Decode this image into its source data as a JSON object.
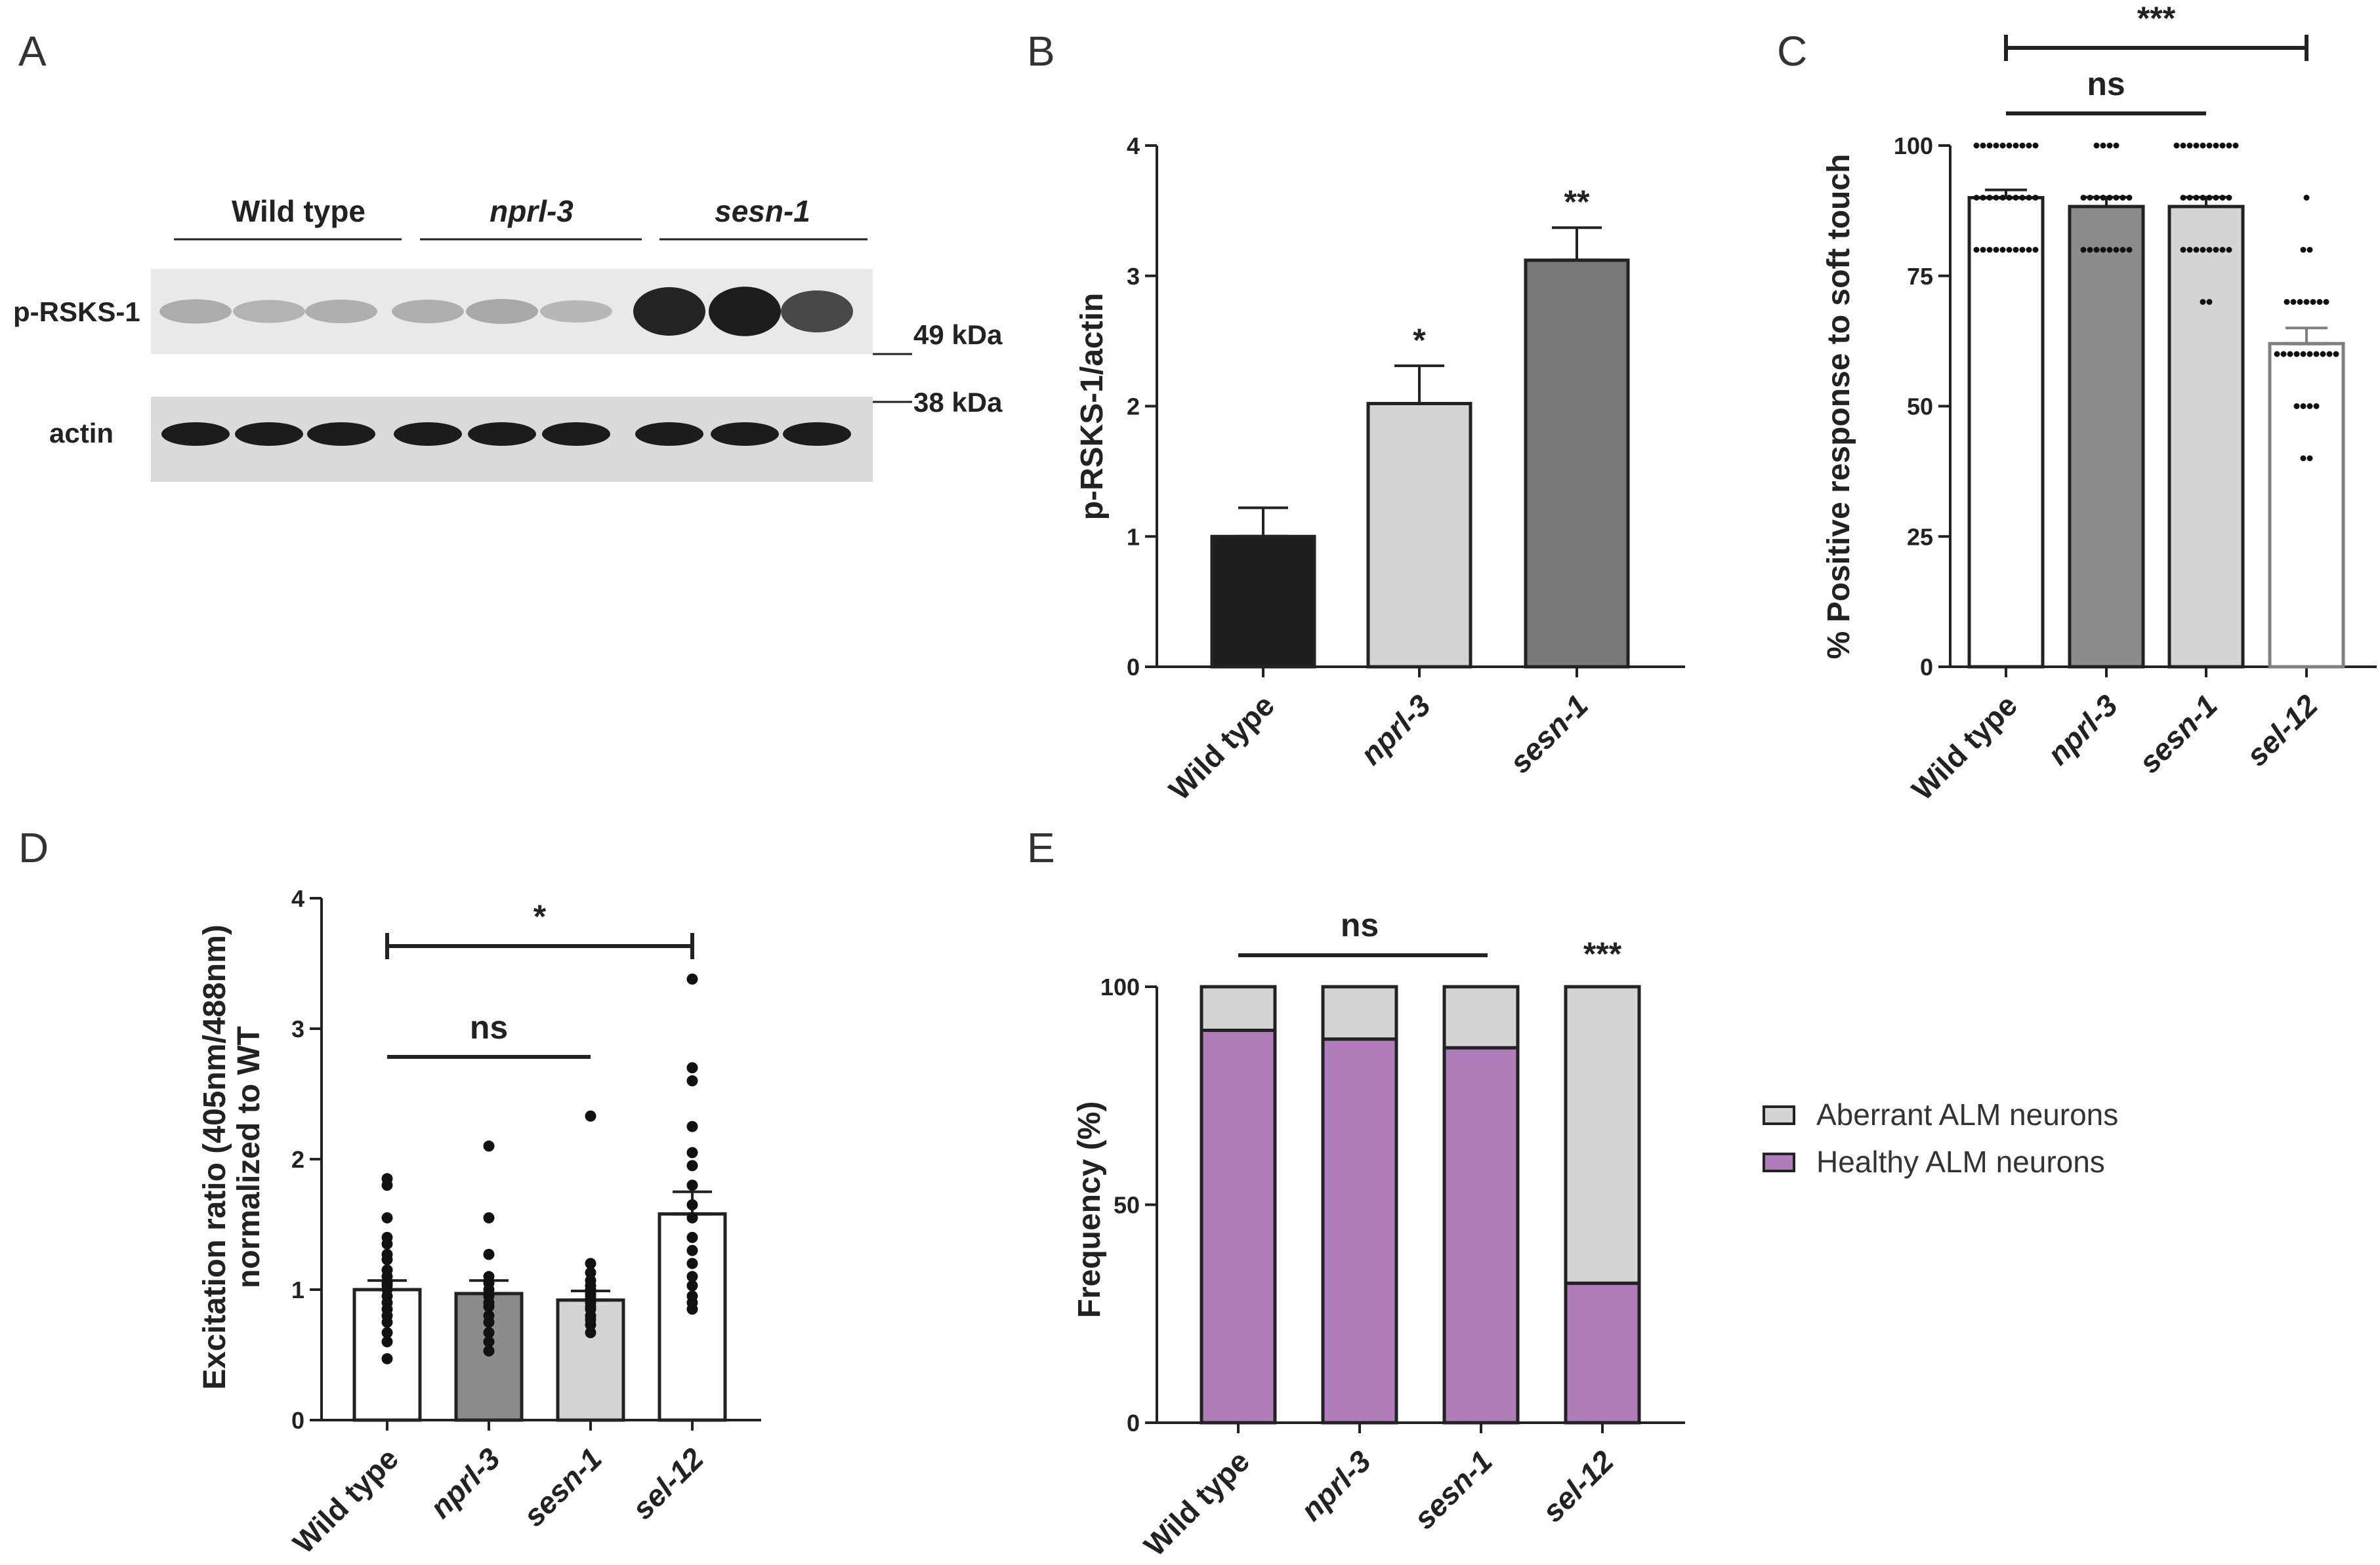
{
  "panel_labels": {
    "a": "A",
    "b": "B",
    "c": "C",
    "d": "D",
    "e": "E"
  },
  "blot": {
    "groups": [
      "Wild type",
      "nprl-3",
      "sesn-1"
    ],
    "rows": [
      "p-RSKS-1",
      "actin"
    ],
    "markers": [
      "49 kDa",
      "38 kDa"
    ],
    "prsks_band_intensity": [
      0.18,
      0.14,
      0.16,
      0.16,
      0.2,
      0.12,
      0.92,
      0.95,
      0.72
    ]
  },
  "colors": {
    "black": "#1e1e1e",
    "light_gray": "#d4d4d4",
    "mid_gray": "#8c8c8c",
    "dark_gray": "#7a7a7a",
    "purple": "#b07cba",
    "axis": "#222222"
  },
  "chart_data": [
    {
      "id": "b",
      "type": "bar",
      "ylabel": "p-RSKS-1/actin",
      "categories": [
        "Wild type",
        "nprl-3",
        "sesn-1"
      ],
      "values": [
        1.0,
        2.02,
        3.12
      ],
      "errors": [
        0.22,
        0.29,
        0.25
      ],
      "significance": [
        "",
        "*",
        "**"
      ],
      "ylim": [
        0,
        4
      ],
      "yticks": [
        "0",
        "1",
        "2",
        "3",
        "4"
      ]
    },
    {
      "id": "c",
      "type": "bar",
      "ylabel": "% Positive response to soft touch",
      "categories": [
        "Wild type",
        "nprl-3",
        "sesn-1",
        "sel-12"
      ],
      "values": [
        90,
        88.3,
        88.3,
        62
      ],
      "errors": [
        1.5,
        1.8,
        1.8,
        3.0
      ],
      "ylim": [
        0,
        100
      ],
      "yticks": [
        "0",
        "25",
        "50",
        "75",
        "100"
      ],
      "points": [
        [
          100,
          100,
          100,
          100,
          100,
          100,
          100,
          100,
          100,
          100,
          90,
          90,
          90,
          90,
          90,
          90,
          90,
          90,
          90,
          90,
          80,
          80,
          80,
          80,
          80,
          80,
          80,
          80,
          80,
          80
        ],
        [
          100,
          100,
          100,
          100,
          90,
          90,
          90,
          90,
          90,
          90,
          90,
          90,
          80,
          80,
          80,
          80,
          80,
          80,
          80,
          80
        ],
        [
          100,
          100,
          100,
          100,
          100,
          100,
          100,
          100,
          100,
          100,
          90,
          90,
          90,
          90,
          90,
          90,
          90,
          90,
          80,
          80,
          80,
          80,
          80,
          80,
          80,
          80,
          70,
          70
        ],
        [
          90,
          80,
          80,
          70,
          70,
          70,
          70,
          70,
          70,
          70,
          60,
          60,
          60,
          60,
          60,
          60,
          60,
          60,
          60,
          60,
          50,
          50,
          50,
          50,
          40,
          40
        ]
      ],
      "comparisons": [
        {
          "label": "ns",
          "from": 0,
          "to": 2,
          "caps": false
        },
        {
          "label": "***",
          "from": 0,
          "to": 3,
          "caps": true
        }
      ]
    },
    {
      "id": "d",
      "type": "bar",
      "ylabel": [
        "Excitation ratio (405nm/488nm)",
        "normalized to WT"
      ],
      "categories": [
        "Wild type",
        "nprl-3",
        "sesn-1",
        "sel-12"
      ],
      "values": [
        1.0,
        0.97,
        0.92,
        1.58
      ],
      "errors": [
        0.07,
        0.1,
        0.07,
        0.17
      ],
      "ylim": [
        0,
        4
      ],
      "yticks": [
        "0",
        "1",
        "2",
        "3",
        "4"
      ],
      "points": [
        [
          1.8,
          1.75,
          1.5,
          1.35,
          1.3,
          1.22,
          1.18,
          1.1,
          1.05,
          1.0,
          0.98,
          0.95,
          0.9,
          0.85,
          0.8,
          0.75,
          0.7,
          0.62,
          0.55,
          0.42
        ],
        [
          2.05,
          1.5,
          1.22,
          1.05,
          1.0,
          0.95,
          0.9,
          0.85,
          0.82,
          0.75,
          0.7,
          0.62,
          0.55,
          0.48
        ],
        [
          2.28,
          1.15,
          1.08,
          1.02,
          0.98,
          0.95,
          0.92,
          0.9,
          0.88,
          0.85,
          0.82,
          0.8,
          0.75,
          0.72,
          0.68,
          0.62
        ],
        [
          3.33,
          2.65,
          2.55,
          2.2,
          2.0,
          1.9,
          1.75,
          1.6,
          1.5,
          1.35,
          1.25,
          1.15,
          1.05,
          0.98,
          0.9,
          0.85,
          0.8
        ]
      ],
      "comparisons": [
        {
          "label": "ns",
          "from": 0,
          "to": 2,
          "caps": false
        },
        {
          "label": "*",
          "from": 0,
          "to": 3,
          "caps": true
        }
      ]
    },
    {
      "id": "e",
      "type": "stacked-bar",
      "ylabel": "Frequency (%)",
      "categories": [
        "Wild type",
        "nprl-3",
        "sesn-1",
        "sel-12"
      ],
      "ylim": [
        0,
        100
      ],
      "yticks": [
        "0",
        "50",
        "100"
      ],
      "series": [
        {
          "name": "Healthy ALM neurons",
          "values": [
            90,
            88,
            86,
            32
          ]
        },
        {
          "name": "Aberrant ALM neurons",
          "values": [
            10,
            12,
            14,
            68
          ]
        }
      ],
      "legend": [
        "Aberrant ALM neurons",
        "Healthy ALM neurons"
      ],
      "comparisons": [
        {
          "label": "ns",
          "from": 0,
          "to": 2
        },
        {
          "label": "***",
          "at": 3
        }
      ]
    }
  ]
}
